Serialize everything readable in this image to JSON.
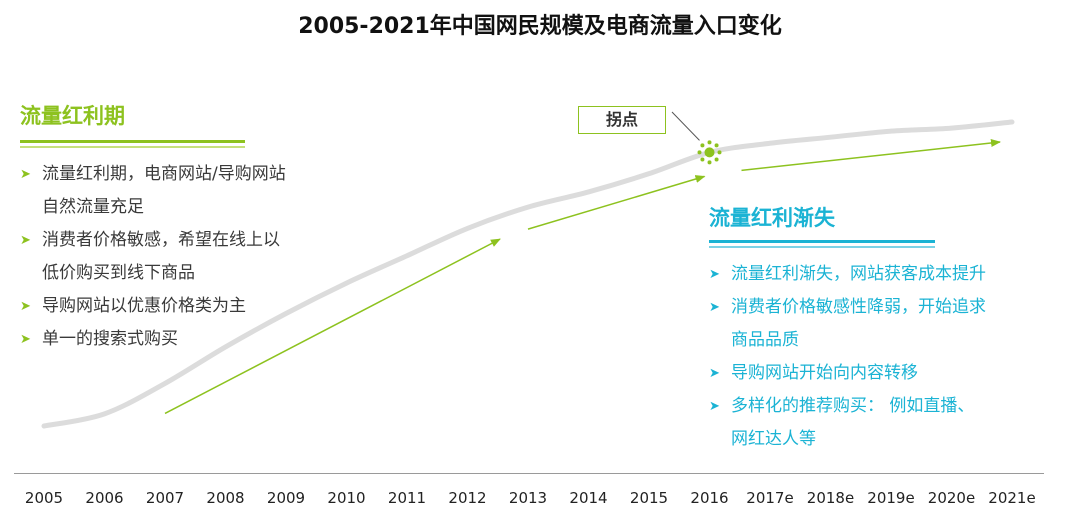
{
  "title": "2005-2021年中国网民规模及电商流量入口变化",
  "turning_point_label": "拐点",
  "left_panel": {
    "heading": "流量红利期",
    "items": [
      "流量红利期，电商网站/导购网站",
      "自然流量充足",
      "消费者价格敏感，希望在线上以",
      "低价购买到线下商品",
      "导购网站以优惠价格类为主",
      "单一的搜索式购买"
    ]
  },
  "right_panel": {
    "heading": "流量红利渐失",
    "items": [
      "流量红利渐失，网站获客成本提升",
      "消费者价格敏感性降弱，开始追求",
      "商品品质",
      "导购网站开始向内容转移",
      "多样化的推荐购买： 例如直播、",
      "网红达人等"
    ]
  },
  "colors": {
    "green": "#8dc21f",
    "blue": "#1bb3d4",
    "curve": "#dcdcdc",
    "axis": "#9a9a9a"
  },
  "chart_data": {
    "type": "line",
    "title": "2005-2021年中国网民规模及电商流量入口变化",
    "xlabel": "",
    "ylabel": "",
    "x": [
      "2005",
      "2006",
      "2007",
      "2008",
      "2009",
      "2010",
      "2011",
      "2012",
      "2013",
      "2014",
      "2015",
      "2016",
      "2017e",
      "2018e",
      "2019e",
      "2020e",
      "2021e"
    ],
    "series": [
      {
        "values": [
          0.0,
          0.04,
          0.14,
          0.26,
          0.37,
          0.47,
          0.56,
          0.65,
          0.72,
          0.77,
          0.83,
          0.9,
          0.93,
          0.95,
          0.97,
          0.98,
          1.0
        ]
      }
    ],
    "ylim": [
      0,
      1
    ],
    "annotations": [
      {
        "text": "拐点",
        "x": "2016"
      }
    ],
    "trend_arrows": [
      {
        "from": "2007",
        "to": "2013",
        "color": "green"
      },
      {
        "from": "2013",
        "to": "2016",
        "color": "green"
      },
      {
        "from": "2016",
        "to": "2021e",
        "color": "green"
      }
    ],
    "grid": false
  }
}
